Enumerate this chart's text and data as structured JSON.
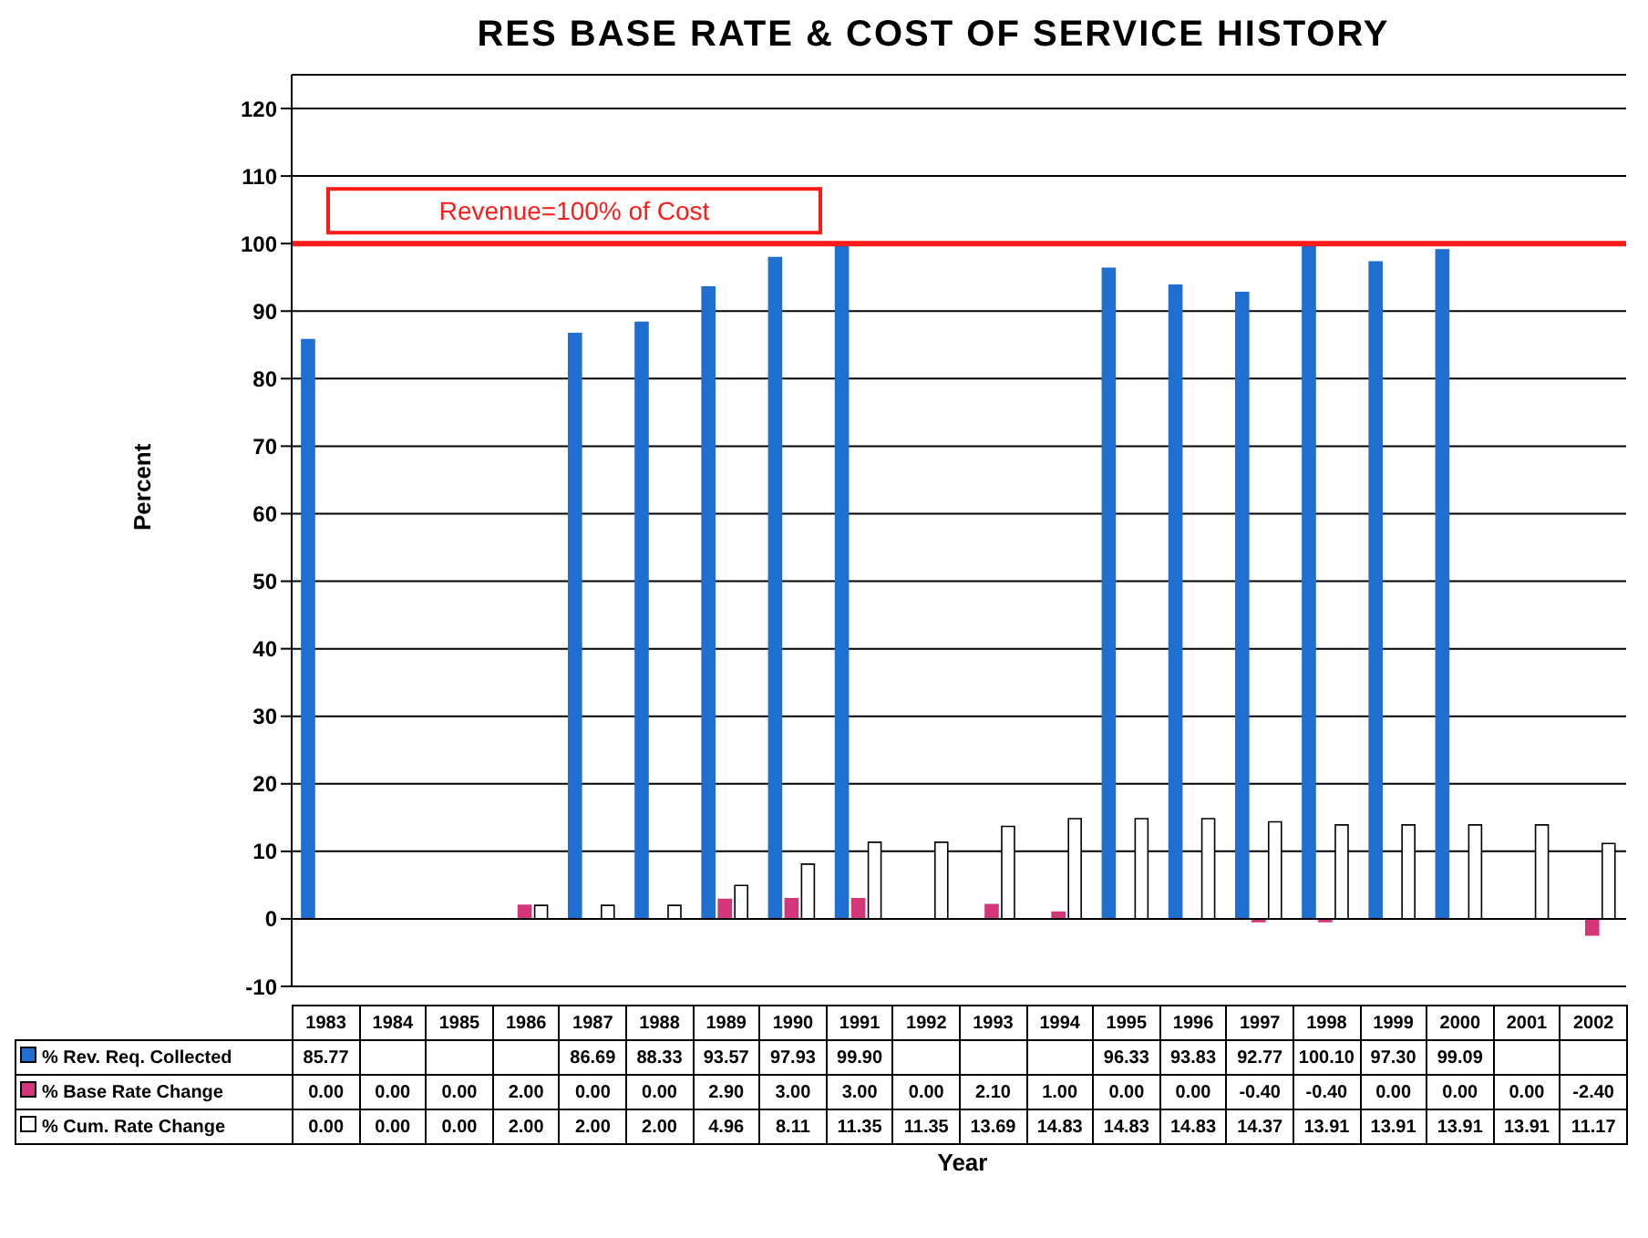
{
  "chart_data": {
    "type": "bar",
    "title": "RES BASE RATE & COST OF SERVICE HISTORY",
    "xlabel": "Year",
    "ylabel": "Percent",
    "categories": [
      "1983",
      "1984",
      "1985",
      "1986",
      "1987",
      "1988",
      "1989",
      "1990",
      "1991",
      "1992",
      "1993",
      "1994",
      "1995",
      "1996",
      "1997",
      "1998",
      "1999",
      "2000",
      "2001",
      "2002"
    ],
    "series": [
      {
        "name": "% Rev. Req. Collected",
        "color": "#1f6fd1",
        "values": [
          85.77,
          null,
          null,
          null,
          86.69,
          88.33,
          93.57,
          97.93,
          99.9,
          null,
          null,
          null,
          96.33,
          93.83,
          92.77,
          100.1,
          97.3,
          99.09,
          null,
          null
        ],
        "value_labels": [
          "85.77",
          null,
          null,
          null,
          "86.69",
          "88.33",
          "93.57",
          "97.93",
          "99.90",
          null,
          null,
          null,
          "96.33",
          "93.83",
          "92.77",
          "100.10",
          "97.30",
          "99.09",
          null,
          null
        ]
      },
      {
        "name": "% Base Rate Change",
        "color": "#d4367a",
        "values": [
          0,
          0,
          0,
          2,
          0,
          0,
          2.9,
          3,
          3,
          0,
          2.1,
          1,
          0,
          0,
          -0.4,
          -0.4,
          0,
          0,
          0,
          -2.4
        ],
        "value_labels": [
          "0.00",
          "0.00",
          "0.00",
          "2.00",
          "0.00",
          "0.00",
          "2.90",
          "3.00",
          "3.00",
          "0.00",
          "2.10",
          "1.00",
          "0.00",
          "0.00",
          "-0.40",
          "-0.40",
          "0.00",
          "0.00",
          "0.00",
          "-2.40"
        ]
      },
      {
        "name": "% Cum. Rate Change",
        "color": "#ffffff",
        "values": [
          0,
          0,
          0,
          2,
          2,
          2,
          4.96,
          8.11,
          11.35,
          11.35,
          13.69,
          14.83,
          14.83,
          14.83,
          14.37,
          13.91,
          13.91,
          13.91,
          13.91,
          11.17
        ],
        "value_labels": [
          "0.00",
          "0.00",
          "0.00",
          "2.00",
          "2.00",
          "2.00",
          "4.96",
          "8.11",
          "11.35",
          "11.35",
          "13.69",
          "14.83",
          "14.83",
          "14.83",
          "14.37",
          "13.91",
          "13.91",
          "13.91",
          "13.91",
          "11.17"
        ]
      }
    ],
    "ylim": [
      -10,
      125
    ],
    "yticks": [
      -10,
      0,
      10,
      20,
      30,
      40,
      50,
      60,
      70,
      80,
      90,
      100,
      110,
      120
    ],
    "grid": "y",
    "legend": "bottom",
    "ref_lines": [
      {
        "axis": "y",
        "value": 100,
        "label": "Revenue=100% of Cost",
        "color": "#ff1a1a"
      }
    ]
  }
}
